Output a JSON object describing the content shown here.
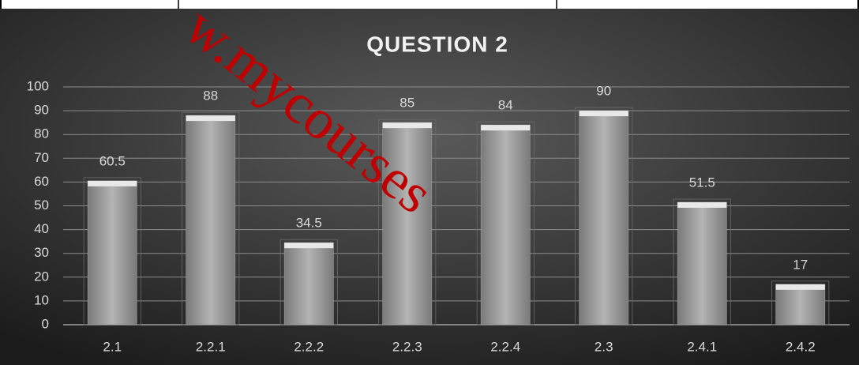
{
  "chart_data": {
    "type": "bar",
    "title": "QUESTION 2",
    "categories": [
      "2.1",
      "2.2.1",
      "2.2.2",
      "2.2.3",
      "2.2.4",
      "2.3",
      "2.4.1",
      "2.4.2"
    ],
    "values": [
      60.5,
      88,
      34.5,
      85,
      84,
      90,
      51.5,
      17
    ],
    "color": "#a6a6a6",
    "ylim": [
      0,
      100
    ],
    "yticks": [
      0,
      10,
      20,
      30,
      40,
      50,
      60,
      70,
      80,
      90,
      100
    ],
    "grid": true
  },
  "watermark": "w.mycourses"
}
